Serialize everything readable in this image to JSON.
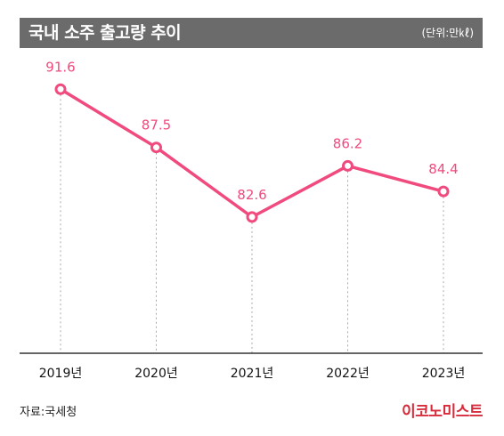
{
  "header": {
    "title": "국내 소주 출고량 추이",
    "unit": "(단위:만㎘)"
  },
  "footer": {
    "source": "자료:국세청",
    "logo": "이코노미스트"
  },
  "colors": {
    "line": "#f04a7e",
    "title_bar": "#6b6b6b",
    "logo": "#d62b3a"
  },
  "chart_data": {
    "type": "line",
    "categories": [
      "2019년",
      "2020년",
      "2021년",
      "2022년",
      "2023년"
    ],
    "values": [
      91.6,
      87.5,
      82.6,
      86.2,
      84.4
    ],
    "value_labels": [
      "91.6",
      "87.5",
      "82.6",
      "86.2",
      "84.4"
    ],
    "title": "국내 소주 출고량 추이",
    "xlabel": "",
    "ylabel": "",
    "ylim": [
      73,
      94
    ],
    "grid": "vertical dotted guides",
    "legend": "none"
  }
}
